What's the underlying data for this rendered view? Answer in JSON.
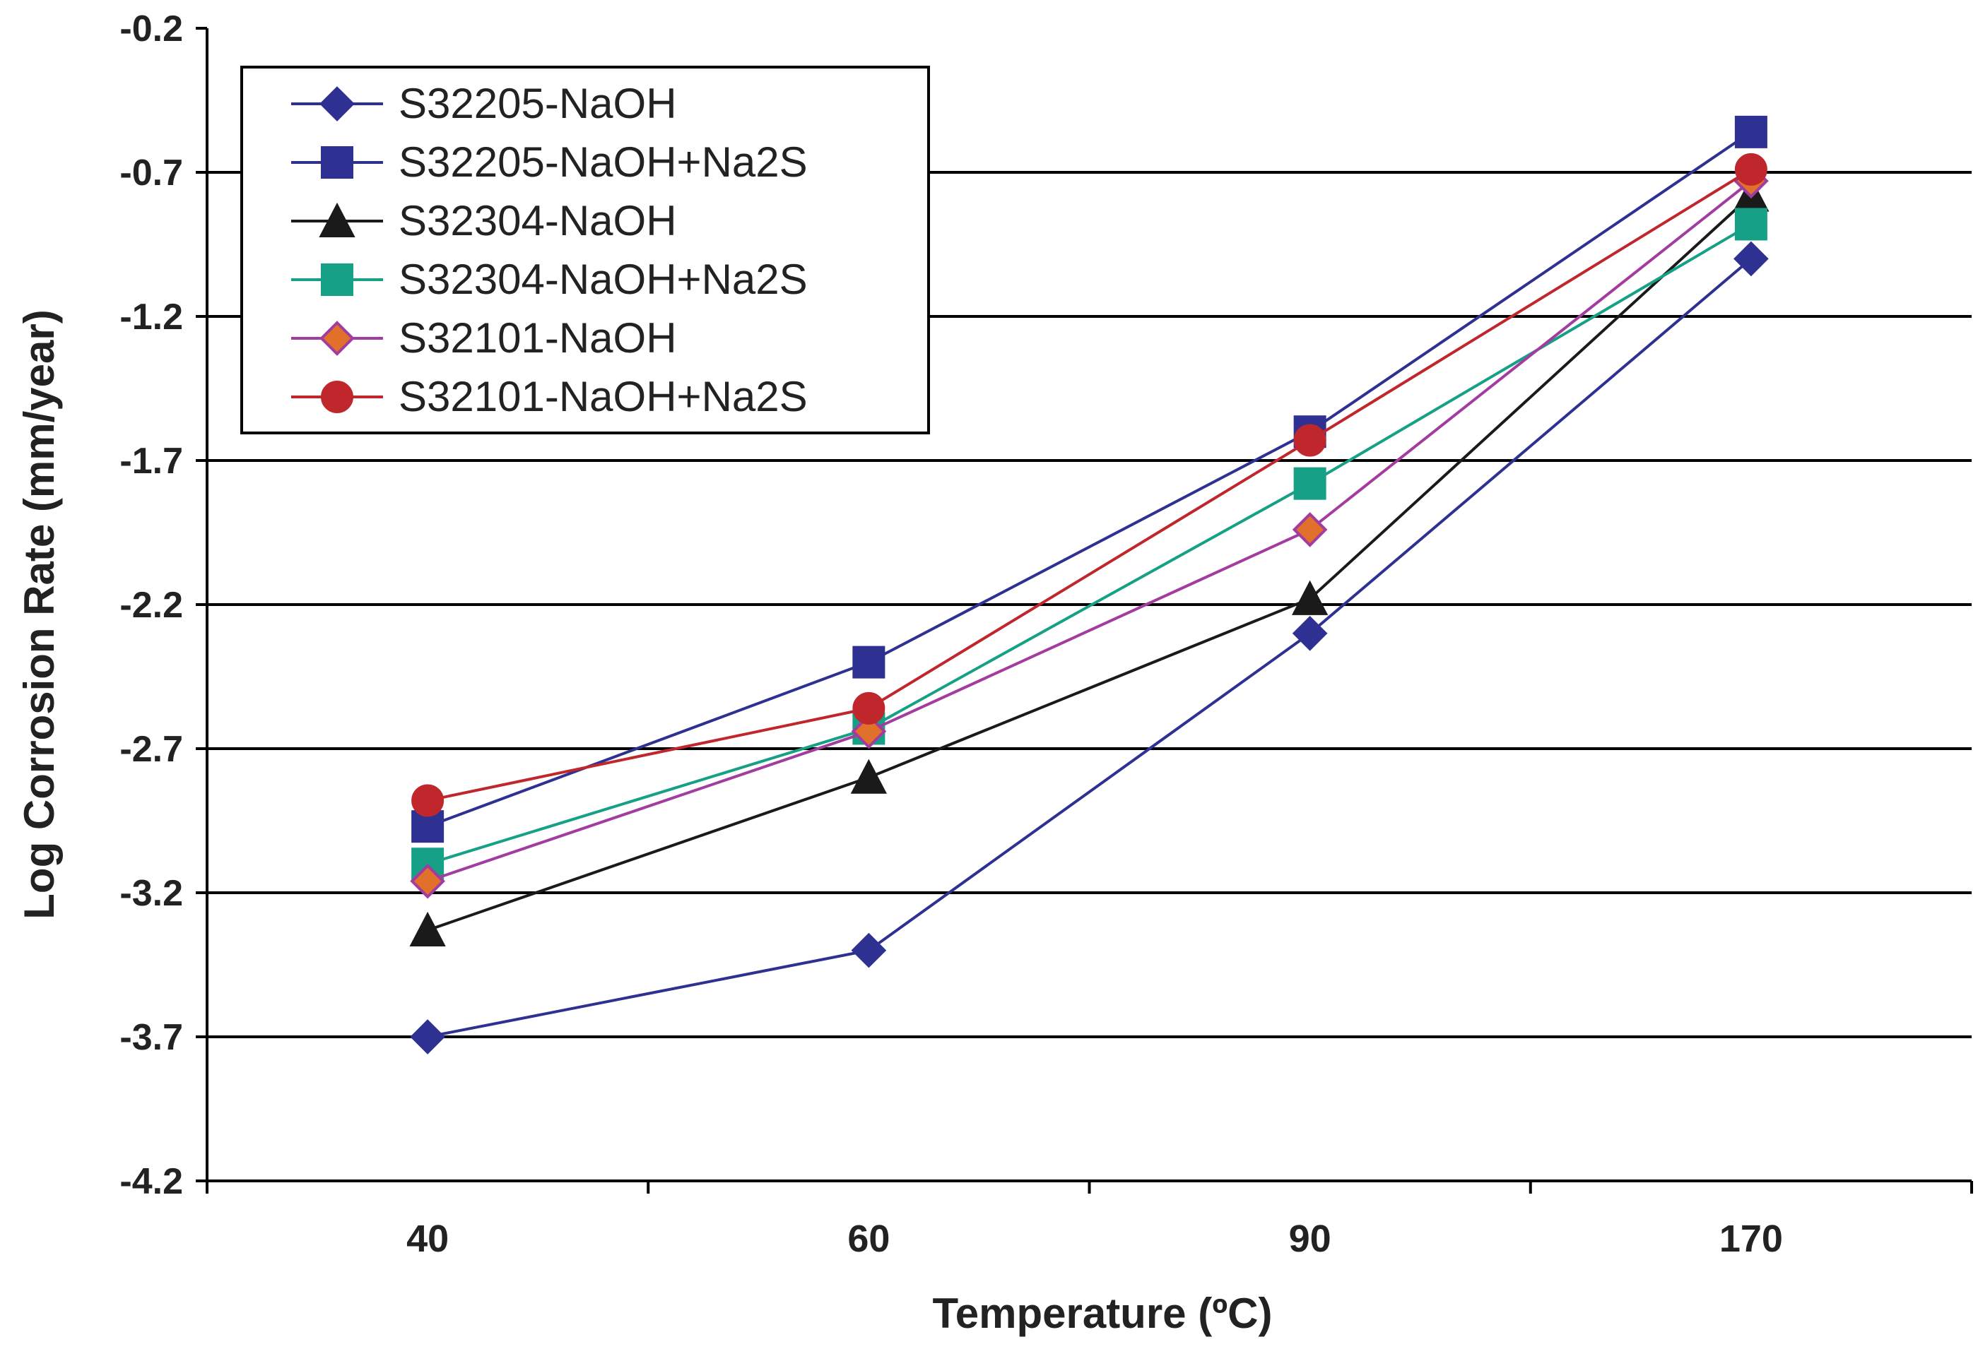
{
  "chart_data": {
    "type": "line",
    "title": "",
    "xlabel": "Temperature (ºC)",
    "ylabel": "Log Corrosion Rate (mm/year)",
    "categories": [
      "40",
      "60",
      "90",
      "170"
    ],
    "ylim": [
      -4.2,
      -0.2
    ],
    "yticks": [
      -0.2,
      -0.7,
      -1.2,
      -1.7,
      -2.2,
      -2.7,
      -3.2,
      -3.7,
      -4.2
    ],
    "ytick_labels": [
      "-0.2",
      "-0.7",
      "-1.2",
      "-1.7",
      "-2.2",
      "-2.7",
      "-3.2",
      "-3.7",
      "-4.2"
    ],
    "grid": "horizontal",
    "legend_position": "top-left",
    "series": [
      {
        "name": "S32205-NaOH",
        "values": [
          -3.7,
          -3.4,
          -2.3,
          -1.0
        ],
        "color": "#2e3192",
        "marker": "diamond",
        "marker_fill": "#2e3192"
      },
      {
        "name": "S32205-NaOH+Na2S",
        "values": [
          -2.97,
          -2.4,
          -1.6,
          -0.56
        ],
        "color": "#2e3192",
        "marker": "square",
        "marker_fill": "#2e3192"
      },
      {
        "name": "S32304-NaOH",
        "values": [
          -3.33,
          -2.8,
          -2.18,
          -0.78
        ],
        "color": "#1a1a1a",
        "marker": "triangle",
        "marker_fill": "#1a1a1a"
      },
      {
        "name": "S32304-NaOH+Na2S",
        "values": [
          -3.1,
          -2.63,
          -1.78,
          -0.88
        ],
        "color": "#16a085",
        "marker": "square",
        "marker_fill": "#16a085"
      },
      {
        "name": "S32101-NaOH",
        "values": [
          -3.16,
          -2.64,
          -1.94,
          -0.73
        ],
        "color": "#a23c9e",
        "marker": "diamond",
        "marker_fill": "#e0702a"
      },
      {
        "name": "S32101-NaOH+Na2S",
        "values": [
          -2.88,
          -2.56,
          -1.63,
          -0.69
        ],
        "color": "#c0272d",
        "marker": "circle",
        "marker_fill": "#c0272d"
      }
    ]
  }
}
